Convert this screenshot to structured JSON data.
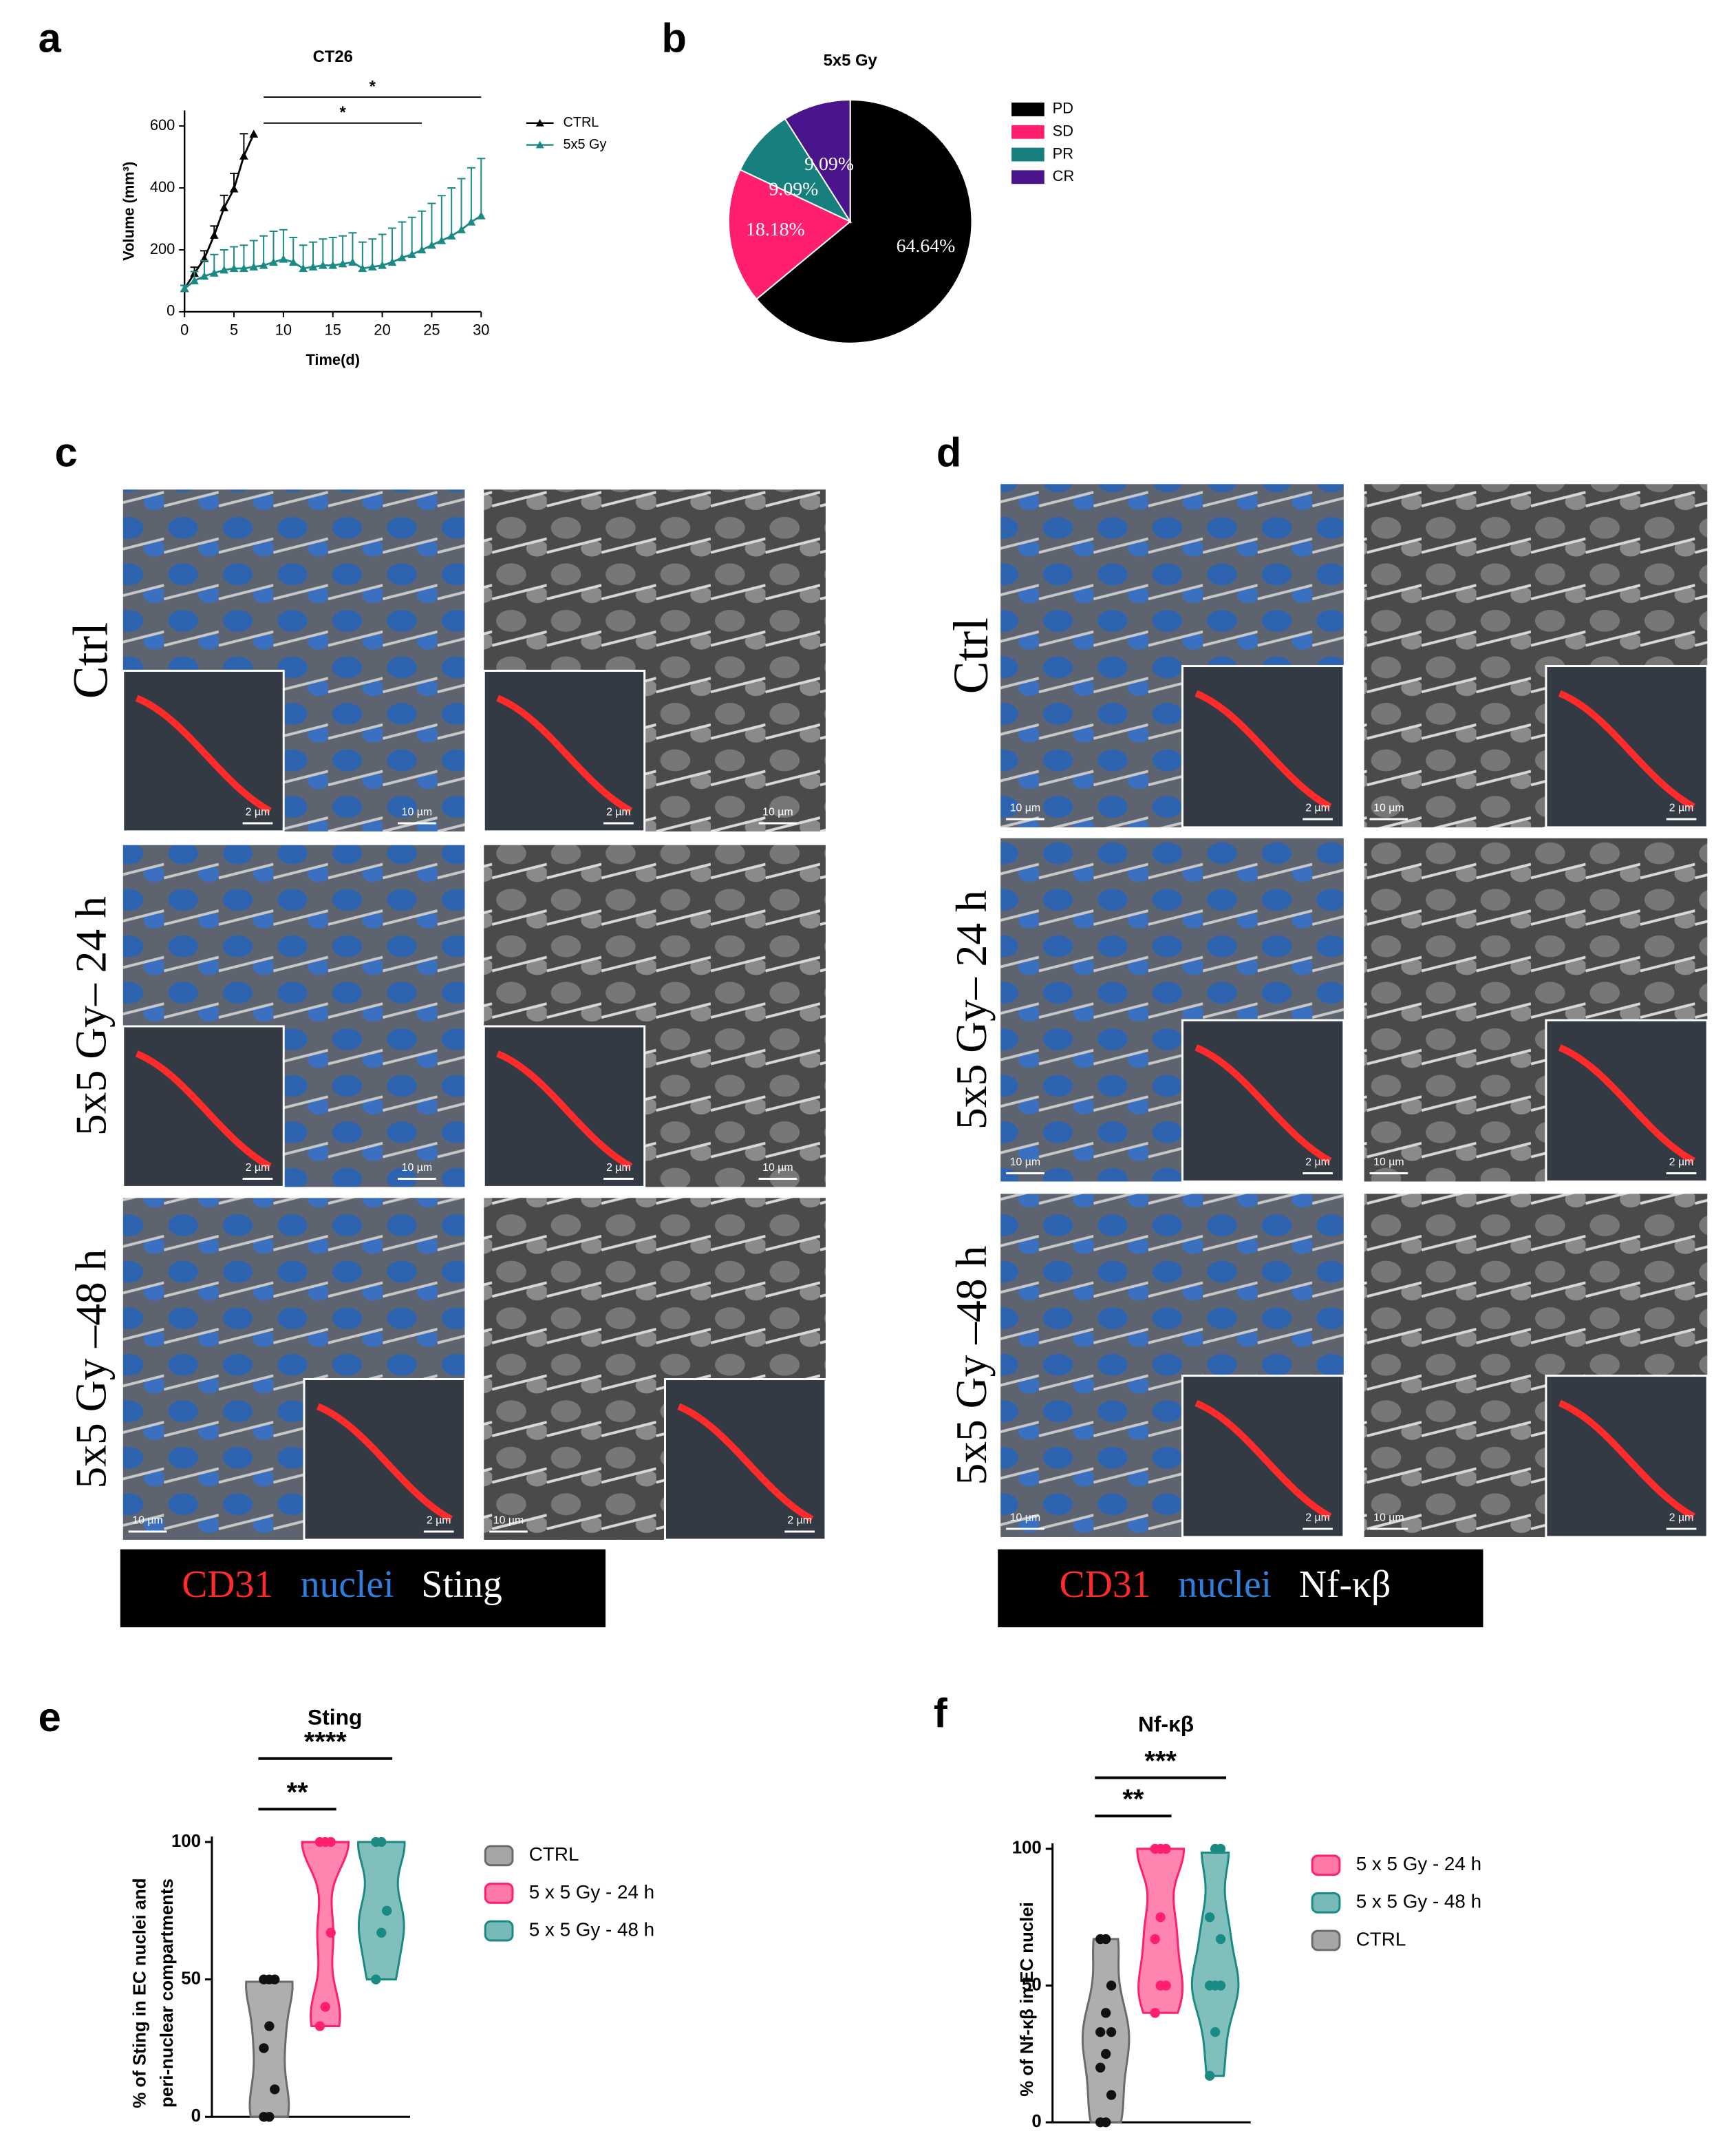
{
  "panel_letters": [
    "a",
    "b",
    "c",
    "d",
    "e",
    "f"
  ],
  "chart_data": [
    {
      "type": "line",
      "title": "CT26",
      "x_label": "Time(d)",
      "y_label": "Volume (mm³)",
      "xlim": [
        0,
        30
      ],
      "ylim": [
        0,
        650
      ],
      "xticks": [
        0,
        5,
        10,
        15,
        20,
        25,
        30
      ],
      "yticks": [
        0,
        200,
        400,
        600
      ],
      "series": [
        {
          "name": "CTRL",
          "color": "#000000",
          "x": [
            0,
            1,
            2,
            3,
            4,
            5,
            6,
            7
          ],
          "values": [
            75,
            124,
            172,
            247,
            336,
            397,
            503,
            574
          ],
          "errors": [
            10,
            20,
            25,
            30,
            40,
            50,
            72,
            0
          ]
        },
        {
          "name": "5x5 Gy",
          "color": "#1a8a85",
          "x": [
            0,
            1,
            2,
            3,
            4,
            5,
            6,
            7,
            8,
            9,
            10,
            11,
            12,
            13,
            14,
            15,
            16,
            17,
            18,
            19,
            20,
            21,
            22,
            23,
            24,
            25,
            26,
            27,
            28,
            29,
            30
          ],
          "values": [
            75,
            100,
            115,
            125,
            135,
            140,
            140,
            145,
            150,
            160,
            170,
            160,
            140,
            145,
            150,
            150,
            155,
            160,
            140,
            145,
            150,
            160,
            175,
            185,
            200,
            215,
            230,
            245,
            265,
            290,
            310
          ],
          "errors": [
            10,
            30,
            50,
            60,
            65,
            70,
            75,
            85,
            95,
            100,
            95,
            80,
            75,
            80,
            85,
            90,
            90,
            95,
            85,
            90,
            100,
            110,
            115,
            120,
            125,
            135,
            145,
            155,
            165,
            175,
            185
          ]
        }
      ],
      "annotations": [
        {
          "text": "*",
          "x_span": [
            8,
            30
          ]
        },
        {
          "text": "*",
          "x_span": [
            8,
            24
          ]
        }
      ]
    },
    {
      "type": "pie",
      "title": "5x5 Gy",
      "categories": [
        "PD",
        "SD",
        "PR",
        "CR"
      ],
      "values": [
        64.64,
        18.18,
        9.09,
        9.09
      ],
      "value_labels": [
        "64.64%",
        "18.18%",
        "9.09%",
        "9.09%"
      ],
      "colors": [
        "#000000",
        "#ff1f6e",
        "#17807e",
        "#4a148c"
      ]
    },
    {
      "type": "violin",
      "title": "Sting",
      "y_label": [
        "% of Sting in EC nuclei and",
        "peri-nuclear compartments"
      ],
      "ylim": [
        0,
        100
      ],
      "yticks": [
        0,
        50,
        100
      ],
      "legend_order": [
        0,
        1,
        2
      ],
      "series": [
        {
          "name": "CTRL",
          "color": "#6b6b6b",
          "values": [
            0,
            0,
            10,
            25,
            33,
            50,
            50,
            50
          ]
        },
        {
          "name": "5 x 5 Gy - 24 h",
          "color": "#ff1f6e",
          "values": [
            33,
            40,
            67,
            100,
            100,
            100
          ]
        },
        {
          "name": "5 x 5 Gy - 48 h",
          "color": "#1a8a85",
          "values": [
            50,
            67,
            75,
            100,
            100
          ]
        }
      ],
      "comparisons": [
        {
          "text": "****",
          "between": [
            0,
            2
          ]
        },
        {
          "text": "**",
          "between": [
            0,
            1
          ]
        }
      ]
    },
    {
      "type": "violin",
      "title": "Nf-κβ",
      "y_label": [
        "% of Nf-κβ in EC nuclei"
      ],
      "ylim": [
        0,
        100
      ],
      "yticks": [
        0,
        50,
        100
      ],
      "legend_order": [
        1,
        2,
        0
      ],
      "series": [
        {
          "name": "CTRL",
          "color": "#6b6b6b",
          "values": [
            0,
            0,
            10,
            20,
            25,
            33,
            33,
            40,
            50,
            67,
            67
          ]
        },
        {
          "name": "5 x 5 Gy - 24 h",
          "color": "#ff1f6e",
          "values": [
            40,
            50,
            50,
            67,
            75,
            100,
            100,
            100
          ]
        },
        {
          "name": "5 x 5 Gy - 48 h",
          "color": "#1a8a85",
          "values": [
            17,
            33,
            50,
            50,
            50,
            67,
            75,
            100,
            100
          ]
        }
      ],
      "comparisons": [
        {
          "text": "***",
          "between": [
            0,
            2
          ]
        },
        {
          "text": "**",
          "between": [
            0,
            1
          ]
        }
      ]
    }
  ],
  "micrographs": [
    {
      "rows": [
        {
          "label": "Ctrl",
          "images": [
            {
              "scale": "10 µm",
              "inset_scale": "2 µm"
            },
            {
              "scale": "10 µm",
              "inset_scale": "2 µm"
            }
          ]
        },
        {
          "label": "5x5 Gy– 24 h",
          "images": [
            {
              "scale": "10 µm",
              "inset_scale": "2 µm"
            },
            {
              "scale": "10 µm",
              "inset_scale": "2 µm"
            }
          ]
        },
        {
          "label": "5x5 Gy –48 h",
          "images": [
            {
              "scale": "10 µm",
              "inset_scale": "2 µm"
            },
            {
              "scale": "10 µm",
              "inset_scale": "2 µm"
            }
          ]
        }
      ],
      "legend": [
        {
          "text": "CD31",
          "color": "#ff2a2a"
        },
        {
          "text": "nuclei",
          "color": "#2f7fdc"
        },
        {
          "text": "Sting",
          "color": "#ffffff"
        }
      ]
    },
    {
      "rows": [
        {
          "label": "Ctrl",
          "images": [
            {
              "scale": "10 µm",
              "inset_scale": "2 µm"
            },
            {
              "scale": "10 µm",
              "inset_scale": "2 µm"
            }
          ]
        },
        {
          "label": "5x5 Gy– 24 h",
          "images": [
            {
              "scale": "10 µm",
              "inset_scale": "2 µm"
            },
            {
              "scale": "10 µm",
              "inset_scale": "2 µm"
            }
          ]
        },
        {
          "label": "5x5 Gy –48 h",
          "images": [
            {
              "scale": "10 µm",
              "inset_scale": "2 µm"
            },
            {
              "scale": "10 µm",
              "inset_scale": "2 µm"
            }
          ]
        }
      ],
      "legend": [
        {
          "text": "CD31",
          "color": "#ff2a2a"
        },
        {
          "text": "nuclei",
          "color": "#2f7fdc"
        },
        {
          "text": "Nf-κβ",
          "color": "#ffffff"
        }
      ]
    }
  ]
}
